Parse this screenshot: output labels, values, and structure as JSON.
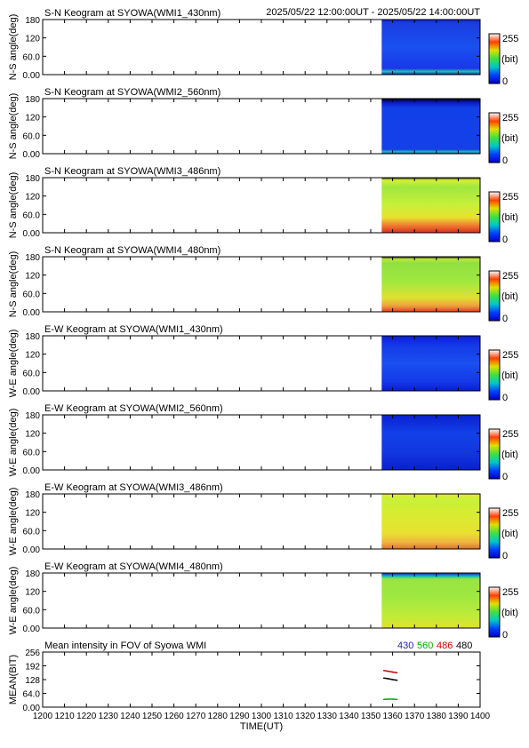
{
  "header": {
    "time_range": "2025/05/22 12:00:00UT - 2025/05/22 14:00:00UT"
  },
  "colorbar": {
    "max_label": "255",
    "unit_label": "(bit)",
    "min_label": "0"
  },
  "chart_data": [
    {
      "type": "heatmap",
      "title": "S-N Keogram at SYOWA(WMI1_430nm)",
      "ylabel": "N-S angle(deg)",
      "yticks": [
        "180",
        "120",
        "60.0",
        "0.00"
      ],
      "ylim": [
        0,
        180
      ],
      "xlim": [
        1200,
        1400
      ],
      "data_start_time": 1355,
      "colorscale": [
        "#0000c8",
        "#0040ff",
        "#00c8c8",
        "#40e040",
        "#e0e000",
        "#ff4000",
        "#ffffff"
      ],
      "profile": [
        {
          "angle": 0,
          "color": "#0a1ed2"
        },
        {
          "angle": 10,
          "color": "#22c8a8"
        },
        {
          "angle": 20,
          "color": "#1a38e8"
        },
        {
          "angle": 90,
          "color": "#1a50f0"
        },
        {
          "angle": 170,
          "color": "#1a3ce0"
        },
        {
          "angle": 180,
          "color": "#0a1ed2"
        }
      ]
    },
    {
      "type": "heatmap",
      "title": "S-N Keogram at SYOWA(WMI2_560nm)",
      "ylabel": "N-S angle(deg)",
      "yticks": [
        "180",
        "120",
        "60.0",
        "0.00"
      ],
      "ylim": [
        0,
        180
      ],
      "xlim": [
        1200,
        1400
      ],
      "data_start_time": 1355,
      "colorscale": [
        "#0000c8",
        "#0040ff",
        "#00c8c8",
        "#40e040",
        "#e0e000",
        "#ff4000",
        "#ffffff"
      ],
      "profile": [
        {
          "angle": 0,
          "color": "#0a20d0"
        },
        {
          "angle": 6,
          "color": "#20c8a0"
        },
        {
          "angle": 14,
          "color": "#1440e8"
        },
        {
          "angle": 150,
          "color": "#1240e8"
        },
        {
          "angle": 168,
          "color": "#0a18c0"
        },
        {
          "angle": 180,
          "color": "#000000"
        }
      ]
    },
    {
      "type": "heatmap",
      "title": "S-N Keogram at SYOWA(WMI3_486nm)",
      "ylabel": "N-S angle(deg)",
      "yticks": [
        "180",
        "120",
        "60.0",
        "0.00"
      ],
      "ylim": [
        0,
        180
      ],
      "xlim": [
        1200,
        1400
      ],
      "data_start_time": 1355,
      "colorscale": [
        "#0000c8",
        "#0040ff",
        "#00c8c8",
        "#40e040",
        "#e0e000",
        "#ff4000",
        "#ffffff"
      ],
      "profile": [
        {
          "angle": 0,
          "color": "#d83020"
        },
        {
          "angle": 25,
          "color": "#f08030"
        },
        {
          "angle": 50,
          "color": "#e8e030"
        },
        {
          "angle": 90,
          "color": "#c8f038"
        },
        {
          "angle": 150,
          "color": "#a0e840"
        },
        {
          "angle": 172,
          "color": "#d8f030"
        },
        {
          "angle": 180,
          "color": "#202020"
        }
      ]
    },
    {
      "type": "heatmap",
      "title": "S-N Keogram at SYOWA(WMI4_480nm)",
      "ylabel": "N-S angle(deg)",
      "yticks": [
        "180",
        "120",
        "60.0",
        "0.00"
      ],
      "ylim": [
        0,
        180
      ],
      "xlim": [
        1200,
        1400
      ],
      "data_start_time": 1355,
      "colorscale": [
        "#0000c8",
        "#0040ff",
        "#00c8c8",
        "#40e040",
        "#e0e000",
        "#ff4000",
        "#ffffff"
      ],
      "profile": [
        {
          "angle": 0,
          "color": "#e04020"
        },
        {
          "angle": 20,
          "color": "#f0a040"
        },
        {
          "angle": 45,
          "color": "#e0e030"
        },
        {
          "angle": 100,
          "color": "#a0e840"
        },
        {
          "angle": 160,
          "color": "#90e040"
        },
        {
          "angle": 172,
          "color": "#c0e838"
        },
        {
          "angle": 180,
          "color": "#101010"
        }
      ]
    },
    {
      "type": "heatmap",
      "title": "E-W Keogram at SYOWA(WMI1_430nm)",
      "ylabel": "W-E angle(deg)",
      "yticks": [
        "180",
        "120",
        "60.0",
        "0.00"
      ],
      "ylim": [
        0,
        180
      ],
      "xlim": [
        1200,
        1400
      ],
      "data_start_time": 1355,
      "colorscale": [
        "#0000c8",
        "#0040ff",
        "#00c8c8",
        "#40e040",
        "#e0e000",
        "#ff4000",
        "#ffffff"
      ],
      "profile": [
        {
          "angle": 0,
          "color": "#0a1ed2"
        },
        {
          "angle": 30,
          "color": "#1438e8"
        },
        {
          "angle": 90,
          "color": "#1a50f0"
        },
        {
          "angle": 150,
          "color": "#1438e8"
        },
        {
          "angle": 180,
          "color": "#0a1ed2"
        }
      ]
    },
    {
      "type": "heatmap",
      "title": "E-W Keogram at SYOWA(WMI2_560nm)",
      "ylabel": "W-E angle(deg)",
      "yticks": [
        "180",
        "120",
        "60.0",
        "0.00"
      ],
      "ylim": [
        0,
        180
      ],
      "xlim": [
        1200,
        1400
      ],
      "data_start_time": 1355,
      "colorscale": [
        "#0000c8",
        "#0040ff",
        "#00c8c8",
        "#40e040",
        "#e0e000",
        "#ff4000",
        "#ffffff"
      ],
      "profile": [
        {
          "angle": 0,
          "color": "#0a20d0"
        },
        {
          "angle": 60,
          "color": "#1238e0"
        },
        {
          "angle": 120,
          "color": "#1240e8"
        },
        {
          "angle": 180,
          "color": "#0a20d0"
        }
      ]
    },
    {
      "type": "heatmap",
      "title": "E-W Keogram at SYOWA(WMI3_486nm)",
      "ylabel": "W-E angle(deg)",
      "yticks": [
        "180",
        "120",
        "60.0",
        "0.00"
      ],
      "ylim": [
        0,
        180
      ],
      "xlim": [
        1200,
        1400
      ],
      "data_start_time": 1355,
      "colorscale": [
        "#0000c8",
        "#0040ff",
        "#00c8c8",
        "#40e040",
        "#e0e000",
        "#ff4000",
        "#ffffff"
      ],
      "profile": [
        {
          "angle": 0,
          "color": "#e07020"
        },
        {
          "angle": 20,
          "color": "#f0b040"
        },
        {
          "angle": 50,
          "color": "#e8e030"
        },
        {
          "angle": 110,
          "color": "#d8ec30"
        },
        {
          "angle": 160,
          "color": "#c8f038"
        },
        {
          "angle": 180,
          "color": "#e8e830"
        }
      ]
    },
    {
      "type": "heatmap",
      "title": "E-W Keogram at SYOWA(WMI4_480nm)",
      "ylabel": "W-E angle(deg)",
      "yticks": [
        "180",
        "120",
        "60.0",
        "0.00"
      ],
      "ylim": [
        0,
        180
      ],
      "xlim": [
        1200,
        1400
      ],
      "data_start_time": 1355,
      "colorscale": [
        "#0000c8",
        "#0040ff",
        "#00c8c8",
        "#40e040",
        "#e0e000",
        "#ff4000",
        "#ffffff"
      ],
      "profile": [
        {
          "angle": 0,
          "color": "#e0e030"
        },
        {
          "angle": 40,
          "color": "#c0ec38"
        },
        {
          "angle": 100,
          "color": "#a0e840"
        },
        {
          "angle": 160,
          "color": "#98e440"
        },
        {
          "angle": 168,
          "color": "#20c8b0"
        },
        {
          "angle": 180,
          "color": "#1020d0"
        }
      ]
    },
    {
      "type": "line",
      "title": "Mean intensity in FOV of Syowa WMI",
      "ylabel": "MEAN(BIT)",
      "xlabel": "TIME(UT)",
      "yticks": [
        "256",
        "192",
        "128",
        "64.0",
        "0.00"
      ],
      "ylim": [
        0,
        256
      ],
      "xlim": [
        1200,
        1400
      ],
      "xticks": [
        "1200",
        "1210",
        "1220",
        "1230",
        "1240",
        "1250",
        "1260",
        "1270",
        "1280",
        "1290",
        "1300",
        "1310",
        "1320",
        "1330",
        "1340",
        "1350",
        "1360",
        "1370",
        "1380",
        "1390",
        "1400"
      ],
      "series": [
        {
          "name": "430",
          "color": "#2020c0",
          "x": [
            1356,
            1358,
            1360,
            1362
          ],
          "y": [
            null,
            null,
            null,
            null
          ]
        },
        {
          "name": "560",
          "color": "#00b000",
          "x": [
            1356,
            1358,
            1360,
            1362
          ],
          "y": [
            36,
            37,
            37,
            36
          ]
        },
        {
          "name": "486",
          "color": "#d00000",
          "x": [
            1356,
            1358,
            1360,
            1362
          ],
          "y": [
            170,
            167,
            163,
            160
          ]
        },
        {
          "name": "480",
          "color": "#000000",
          "x": [
            1356,
            1358,
            1360,
            1362
          ],
          "y": [
            135,
            132,
            128,
            125
          ]
        }
      ]
    }
  ]
}
